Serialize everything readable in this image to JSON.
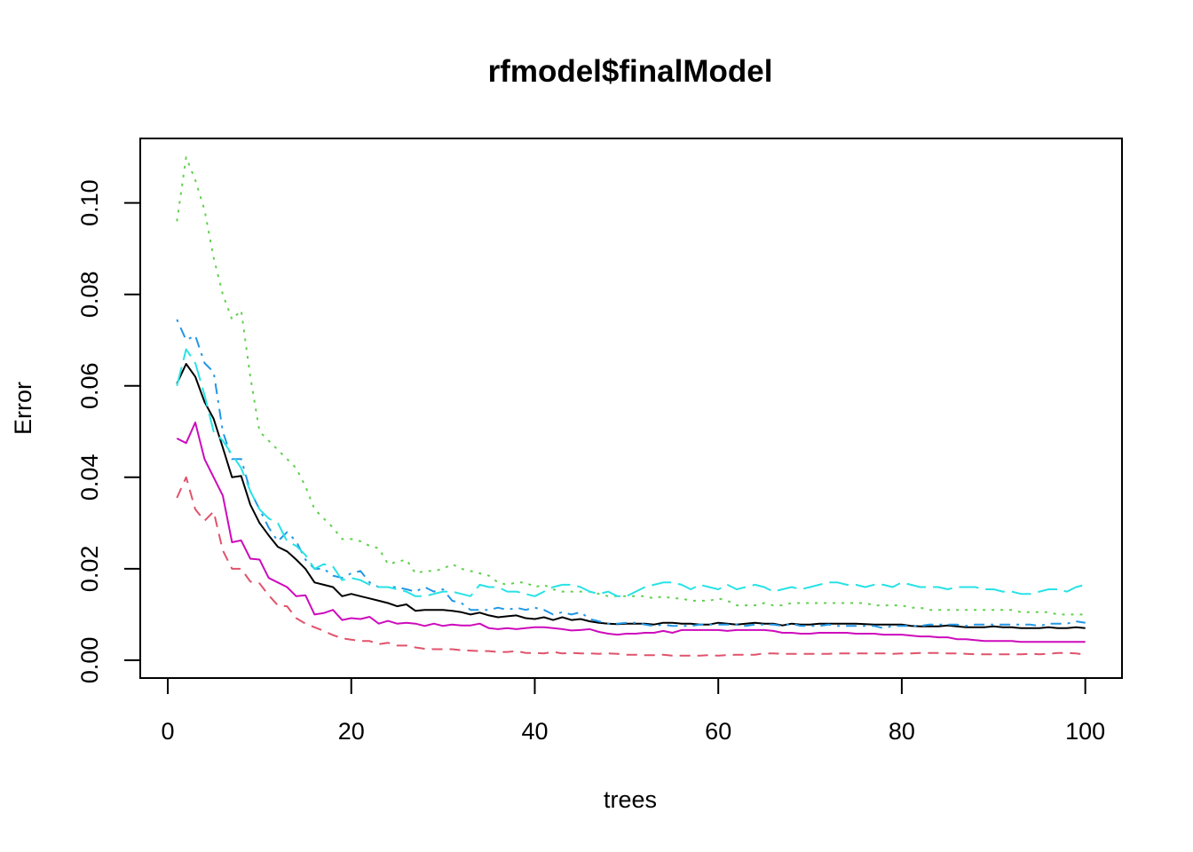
{
  "chart_data": {
    "type": "line",
    "title": "rfmodel$finalModel",
    "xlabel": "trees",
    "ylabel": "Error",
    "xlim": [
      -3,
      104
    ],
    "ylim": [
      -0.0039,
      0.1141
    ],
    "xticks": [
      0,
      20,
      40,
      60,
      80,
      100
    ],
    "xtick_labels": [
      "0",
      "20",
      "40",
      "60",
      "80",
      "100"
    ],
    "yticks": [
      0.0,
      0.02,
      0.04,
      0.06,
      0.08,
      0.1
    ],
    "ytick_labels": [
      "0.00",
      "0.02",
      "0.04",
      "0.06",
      "0.08",
      "0.10"
    ],
    "grid": false,
    "legend": "none",
    "x": [
      1,
      2,
      3,
      4,
      5,
      6,
      7,
      8,
      9,
      10,
      11,
      12,
      13,
      14,
      15,
      16,
      17,
      18,
      19,
      20,
      21,
      22,
      23,
      24,
      25,
      26,
      27,
      28,
      29,
      30,
      31,
      32,
      33,
      34,
      35,
      36,
      37,
      38,
      39,
      40,
      41,
      42,
      43,
      44,
      45,
      46,
      47,
      48,
      49,
      50,
      51,
      52,
      53,
      54,
      55,
      56,
      57,
      58,
      59,
      60,
      61,
      62,
      63,
      64,
      65,
      66,
      67,
      68,
      69,
      70,
      71,
      72,
      73,
      74,
      75,
      76,
      77,
      78,
      79,
      80,
      81,
      82,
      83,
      84,
      85,
      86,
      87,
      88,
      89,
      90,
      91,
      92,
      93,
      94,
      95,
      96,
      97,
      98,
      99,
      100
    ],
    "series": [
      {
        "color": "#000000",
        "dash": "solid",
        "values": [
          0.0605,
          0.0648,
          0.062,
          0.0565,
          0.0528,
          0.0465,
          0.04,
          0.0403,
          0.034,
          0.03,
          0.0273,
          0.0248,
          0.0238,
          0.022,
          0.02,
          0.017,
          0.0165,
          0.016,
          0.014,
          0.0145,
          0.014,
          0.0135,
          0.013,
          0.0125,
          0.0118,
          0.0122,
          0.0108,
          0.011,
          0.011,
          0.011,
          0.0108,
          0.0105,
          0.01,
          0.0104,
          0.0098,
          0.0094,
          0.0096,
          0.0098,
          0.0092,
          0.009,
          0.0094,
          0.0088,
          0.0094,
          0.0088,
          0.009,
          0.0085,
          0.0082,
          0.008,
          0.0079,
          0.008,
          0.008,
          0.008,
          0.0078,
          0.0082,
          0.0082,
          0.008,
          0.008,
          0.0078,
          0.0078,
          0.0082,
          0.008,
          0.0078,
          0.008,
          0.0082,
          0.008,
          0.008,
          0.0076,
          0.008,
          0.0078,
          0.0078,
          0.008,
          0.008,
          0.008,
          0.008,
          0.008,
          0.0079,
          0.0078,
          0.0078,
          0.0078,
          0.0078,
          0.0075,
          0.0074,
          0.0074,
          0.0074,
          0.0076,
          0.0074,
          0.0072,
          0.0072,
          0.0072,
          0.0074,
          0.0072,
          0.0072,
          0.007,
          0.007,
          0.007,
          0.0072,
          0.007,
          0.007,
          0.0072,
          0.007
        ]
      },
      {
        "color": "#DF536B",
        "dash": "dashed",
        "values": [
          0.0355,
          0.04,
          0.033,
          0.0305,
          0.0325,
          0.024,
          0.02,
          0.02,
          0.0172,
          0.0168,
          0.0142,
          0.012,
          0.0118,
          0.0092,
          0.008,
          0.0072,
          0.0064,
          0.0055,
          0.0048,
          0.0045,
          0.0042,
          0.0042,
          0.0035,
          0.0038,
          0.0032,
          0.0032,
          0.0028,
          0.0025,
          0.0024,
          0.0024,
          0.0024,
          0.0022,
          0.0021,
          0.002,
          0.002,
          0.0018,
          0.0018,
          0.002,
          0.0016,
          0.0016,
          0.0015,
          0.0018,
          0.0015,
          0.0016,
          0.0015,
          0.0015,
          0.0014,
          0.0015,
          0.0014,
          0.0012,
          0.0012,
          0.0011,
          0.0011,
          0.0012,
          0.001,
          0.001,
          0.001,
          0.001,
          0.0011,
          0.001,
          0.0011,
          0.0012,
          0.0012,
          0.0012,
          0.0015,
          0.0015,
          0.0014,
          0.0014,
          0.0014,
          0.0014,
          0.0014,
          0.0014,
          0.0015,
          0.0015,
          0.0015,
          0.0015,
          0.0015,
          0.0015,
          0.0014,
          0.0015,
          0.0015,
          0.0016,
          0.0016,
          0.0016,
          0.0015,
          0.0015,
          0.0014,
          0.0013,
          0.0013,
          0.0013,
          0.0013,
          0.0013,
          0.0013,
          0.0014,
          0.0013,
          0.0014,
          0.0016,
          0.0016,
          0.0015,
          0.0012
        ]
      },
      {
        "color": "#61D04F",
        "dash": "dotted",
        "values": [
          0.096,
          0.11,
          0.105,
          0.0985,
          0.088,
          0.08,
          0.0745,
          0.0765,
          0.062,
          0.05,
          0.048,
          0.046,
          0.044,
          0.042,
          0.038,
          0.033,
          0.031,
          0.029,
          0.0265,
          0.0265,
          0.026,
          0.025,
          0.0245,
          0.021,
          0.0215,
          0.022,
          0.019,
          0.0195,
          0.0195,
          0.02,
          0.021,
          0.02,
          0.0195,
          0.019,
          0.0185,
          0.017,
          0.0165,
          0.017,
          0.017,
          0.016,
          0.0165,
          0.0155,
          0.015,
          0.015,
          0.015,
          0.015,
          0.0145,
          0.014,
          0.014,
          0.014,
          0.014,
          0.014,
          0.0135,
          0.014,
          0.0135,
          0.0135,
          0.013,
          0.013,
          0.013,
          0.0135,
          0.013,
          0.012,
          0.012,
          0.012,
          0.0125,
          0.012,
          0.012,
          0.0125,
          0.0125,
          0.0125,
          0.0125,
          0.0125,
          0.0125,
          0.0125,
          0.0125,
          0.0125,
          0.012,
          0.012,
          0.012,
          0.012,
          0.0115,
          0.0115,
          0.011,
          0.011,
          0.011,
          0.011,
          0.011,
          0.011,
          0.011,
          0.011,
          0.011,
          0.011,
          0.0105,
          0.0105,
          0.0105,
          0.0105,
          0.01,
          0.01,
          0.01,
          0.01
        ]
      },
      {
        "color": "#2297E6",
        "dash": "dotdash",
        "values": [
          0.0745,
          0.07,
          0.071,
          0.065,
          0.063,
          0.05,
          0.044,
          0.044,
          0.037,
          0.033,
          0.029,
          0.026,
          0.028,
          0.026,
          0.022,
          0.02,
          0.02,
          0.0185,
          0.018,
          0.019,
          0.0195,
          0.017,
          0.016,
          0.016,
          0.016,
          0.0155,
          0.015,
          0.016,
          0.015,
          0.0155,
          0.013,
          0.0125,
          0.011,
          0.011,
          0.011,
          0.0115,
          0.011,
          0.0115,
          0.011,
          0.0115,
          0.011,
          0.01,
          0.0105,
          0.01,
          0.0105,
          0.009,
          0.0085,
          0.008,
          0.008,
          0.0082,
          0.0082,
          0.0078,
          0.0075,
          0.0078,
          0.0075,
          0.0075,
          0.0075,
          0.0078,
          0.0078,
          0.0078,
          0.0078,
          0.0078,
          0.0075,
          0.0078,
          0.0078,
          0.0078,
          0.0075,
          0.008,
          0.0075,
          0.0075,
          0.0075,
          0.0078,
          0.0075,
          0.0075,
          0.0075,
          0.0075,
          0.0075,
          0.007,
          0.0075,
          0.0075,
          0.0075,
          0.0075,
          0.0078,
          0.0078,
          0.0078,
          0.0078,
          0.0075,
          0.0078,
          0.0078,
          0.0078,
          0.0078,
          0.0078,
          0.0078,
          0.0078,
          0.0075,
          0.008,
          0.008,
          0.008,
          0.0085,
          0.0082
        ]
      },
      {
        "color": "#28E2E5",
        "dash": "longdash",
        "values": [
          0.06,
          0.068,
          0.065,
          0.058,
          0.05,
          0.048,
          0.045,
          0.042,
          0.037,
          0.033,
          0.031,
          0.03,
          0.026,
          0.025,
          0.023,
          0.02,
          0.021,
          0.0205,
          0.0175,
          0.018,
          0.0175,
          0.0165,
          0.016,
          0.016,
          0.0155,
          0.015,
          0.014,
          0.014,
          0.0145,
          0.015,
          0.015,
          0.0145,
          0.014,
          0.0165,
          0.016,
          0.016,
          0.015,
          0.015,
          0.0145,
          0.014,
          0.015,
          0.016,
          0.0165,
          0.0165,
          0.016,
          0.015,
          0.0145,
          0.015,
          0.014,
          0.014,
          0.015,
          0.016,
          0.0165,
          0.017,
          0.017,
          0.0165,
          0.0155,
          0.0165,
          0.016,
          0.0155,
          0.0165,
          0.0155,
          0.016,
          0.0165,
          0.016,
          0.015,
          0.0155,
          0.016,
          0.0155,
          0.016,
          0.0165,
          0.017,
          0.017,
          0.0165,
          0.0165,
          0.016,
          0.0165,
          0.0165,
          0.016,
          0.017,
          0.0165,
          0.016,
          0.016,
          0.016,
          0.0155,
          0.016,
          0.016,
          0.016,
          0.0155,
          0.0155,
          0.015,
          0.015,
          0.0145,
          0.0145,
          0.015,
          0.0155,
          0.0155,
          0.015,
          0.016,
          0.0165
        ]
      },
      {
        "color": "#CD0BBC",
        "dash": "solid",
        "values": [
          0.0485,
          0.0475,
          0.052,
          0.044,
          0.04,
          0.036,
          0.0258,
          0.0262,
          0.0222,
          0.022,
          0.018,
          0.017,
          0.016,
          0.014,
          0.0142,
          0.01,
          0.0103,
          0.011,
          0.0088,
          0.0092,
          0.009,
          0.0095,
          0.008,
          0.0086,
          0.008,
          0.0082,
          0.008,
          0.0075,
          0.008,
          0.0075,
          0.0078,
          0.0076,
          0.0076,
          0.008,
          0.007,
          0.0068,
          0.007,
          0.0068,
          0.007,
          0.0072,
          0.0072,
          0.007,
          0.0068,
          0.0065,
          0.0066,
          0.0068,
          0.0062,
          0.0058,
          0.0056,
          0.0058,
          0.0058,
          0.006,
          0.006,
          0.0064,
          0.006,
          0.0066,
          0.0066,
          0.0066,
          0.0066,
          0.0066,
          0.0064,
          0.0066,
          0.0066,
          0.0066,
          0.0066,
          0.0064,
          0.006,
          0.006,
          0.0058,
          0.0058,
          0.006,
          0.006,
          0.006,
          0.006,
          0.0058,
          0.0058,
          0.0058,
          0.0056,
          0.0056,
          0.0056,
          0.0054,
          0.0052,
          0.0052,
          0.005,
          0.005,
          0.0046,
          0.0046,
          0.0044,
          0.0042,
          0.0042,
          0.0042,
          0.0042,
          0.004,
          0.004,
          0.004,
          0.004,
          0.004,
          0.004,
          0.004,
          0.004
        ]
      }
    ]
  }
}
